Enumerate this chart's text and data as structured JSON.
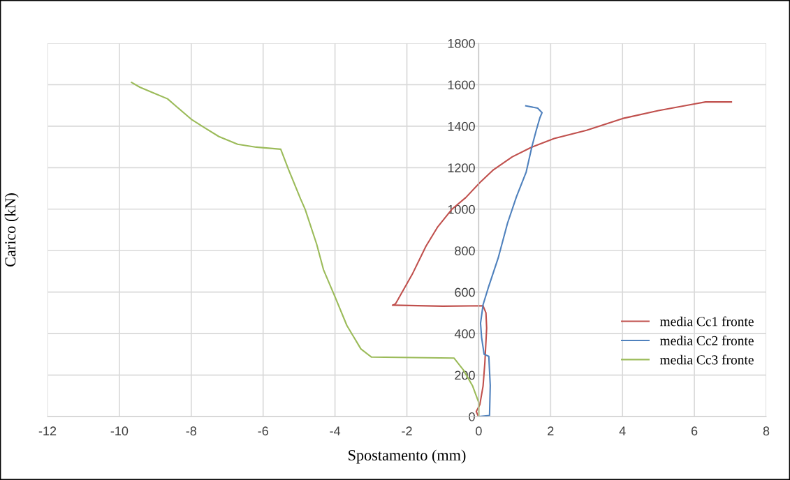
{
  "chart_data": {
    "type": "line",
    "xlabel": "Spostamento (mm)",
    "ylabel": "Carico (kN)",
    "xlim": [
      -12,
      8
    ],
    "xticks": [
      -12,
      -10,
      -8,
      -6,
      -4,
      -2,
      0,
      2,
      4,
      6,
      8
    ],
    "ylim": [
      0,
      1800
    ],
    "yticks": [
      0,
      200,
      400,
      600,
      800,
      1000,
      1200,
      1400,
      1600,
      1800
    ],
    "grid": true,
    "legend": "right",
    "line_style": "solid",
    "marker": "none",
    "series": [
      {
        "name": "media Cc1 fronte",
        "color": "#c0504d",
        "x": [
          -0.02,
          -0.07,
          0.03,
          0.12,
          0.17,
          0.22,
          0.2,
          0.12,
          -1.0,
          -2.4,
          -2.35,
          -2.31,
          -1.85,
          -1.47,
          -1.14,
          -0.75,
          -0.36,
          0.03,
          0.41,
          0.93,
          1.45,
          2.1,
          3.0,
          4.0,
          5.0,
          6.0,
          6.31,
          7.03
        ],
        "values": [
          5,
          24,
          57,
          147,
          259,
          427,
          500,
          534,
          532,
          537,
          540,
          545,
          686,
          821,
          915,
          999,
          1056,
          1128,
          1190,
          1252,
          1297,
          1341,
          1380,
          1437,
          1475,
          1507,
          1517,
          1517
        ]
      },
      {
        "name": "media Cc2 fronte",
        "color": "#4f81bd",
        "x": [
          0,
          0.3,
          0.32,
          0.28,
          0.15,
          0.08,
          0.05,
          0.12,
          0.28,
          0.54,
          0.8,
          1.05,
          1.32,
          1.48,
          1.6,
          1.7,
          1.76,
          1.64,
          1.31
        ],
        "values": [
          0,
          5,
          150,
          290,
          300,
          380,
          450,
          539,
          629,
          764,
          932,
          1060,
          1179,
          1302,
          1380,
          1440,
          1465,
          1487,
          1498
        ]
      },
      {
        "name": "media Cc3 fronte",
        "color": "#9bbb59",
        "x": [
          0,
          0,
          -0.17,
          -0.43,
          -0.69,
          -2.99,
          -3.28,
          -3.67,
          -3.99,
          -4.32,
          -4.51,
          -4.83,
          -4.96,
          -5.29,
          -5.51,
          -6.19,
          -6.71,
          -7.23,
          -7.62,
          -7.98,
          -8.4,
          -8.66,
          -9.05,
          -9.43,
          -9.66
        ],
        "values": [
          0,
          68,
          147,
          225,
          282,
          287,
          326,
          439,
          573,
          708,
          831,
          999,
          1050,
          1190,
          1289,
          1299,
          1313,
          1350,
          1392,
          1431,
          1493,
          1532,
          1560,
          1588,
          1611
        ]
      }
    ]
  }
}
